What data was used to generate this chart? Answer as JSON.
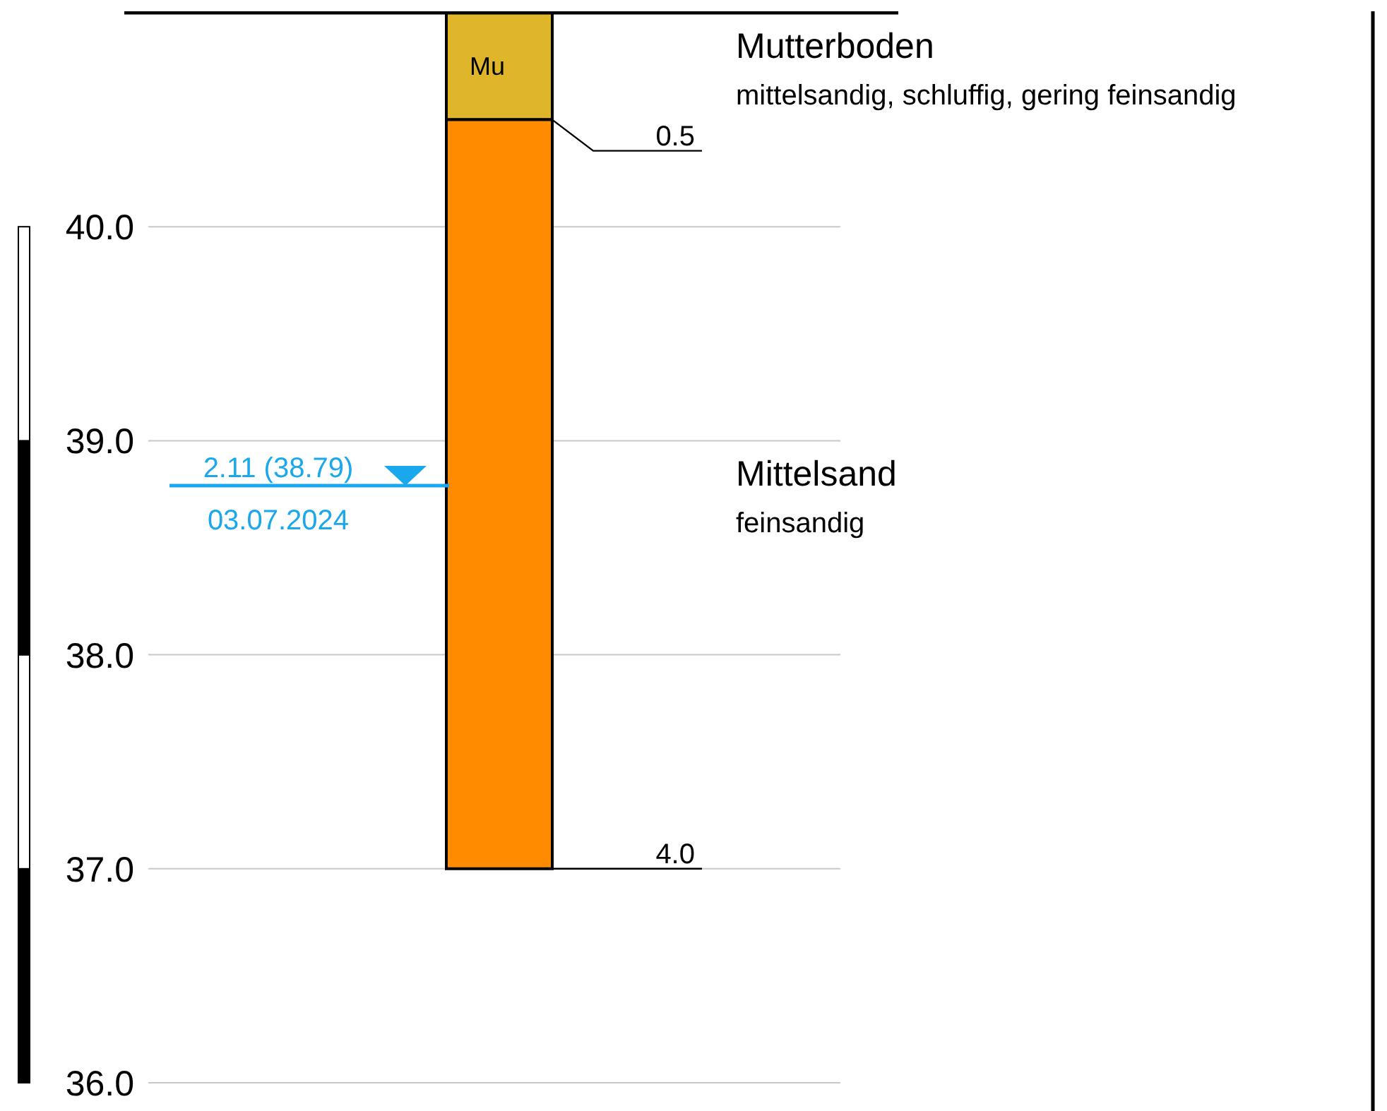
{
  "chart_data": {
    "type": "bar",
    "categories": [
      null
    ],
    "tick_labels": "y",
    "grid": "y",
    "series": [
      {
        "name": "Mutterboden",
        "color": "#dfb62a",
        "base": [
          40.5
        ],
        "values": [
          0.5
        ]
      },
      {
        "name": "Mittelsand",
        "color": "#ff8c00",
        "base": [
          37.0
        ],
        "values": [
          3.5
        ]
      }
    ],
    "ylim": [
      36,
      41
    ],
    "yticks": [
      {
        "value": 36,
        "label": "36.0"
      },
      {
        "value": 37,
        "label": "37.0"
      },
      {
        "value": 38,
        "label": "38.0"
      },
      {
        "value": 39,
        "label": "39.0"
      },
      {
        "value": 40,
        "label": "40.0"
      }
    ],
    "ref_lines": [
      {
        "axis": "y",
        "value": 41.0,
        "color": "#000000"
      },
      {
        "axis": "y",
        "value": 38.79,
        "label": "2.11 (38.79)",
        "color": "#1aa7ec"
      }
    ],
    "annotations": [
      "Mu",
      "0.5",
      "4.0",
      "mittelsandig, schluffig, gering feinsandig",
      "feinsandig",
      {
        "text": "03.07.2024",
        "y": 38.79
      }
    ]
  }
}
